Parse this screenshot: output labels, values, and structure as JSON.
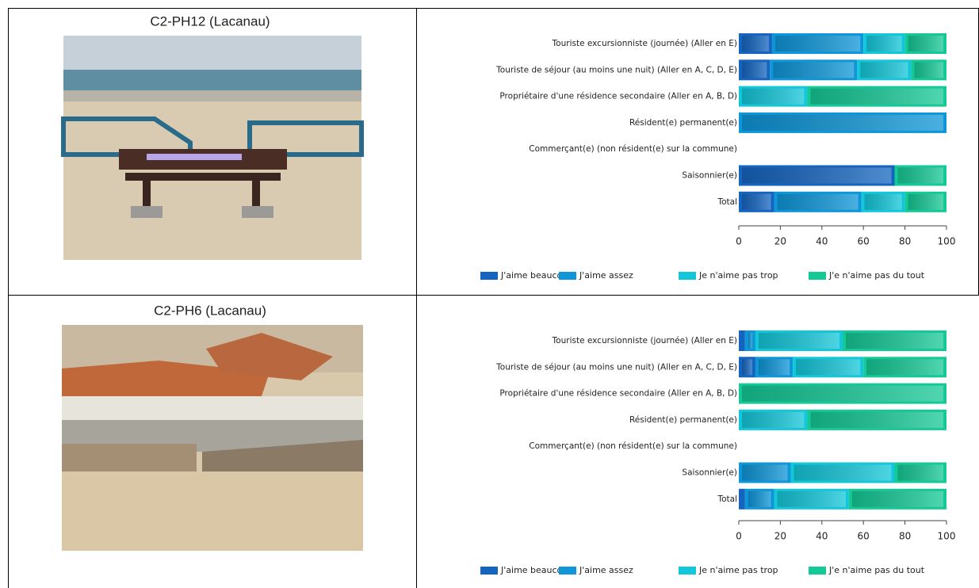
{
  "photos": [
    {
      "caption": "C2-PH12 (Lacanau)"
    },
    {
      "caption": "C2-PH6 (Lacanau)"
    }
  ],
  "chart_data": [
    {
      "type": "bar",
      "orientation": "horizontal",
      "stacked": true,
      "categories": [
        "Touriste excursionniste (journée) (Aller en E)",
        "Touriste de séjour (au moins une nuit) (Aller en A, C, D, E)",
        "Propriétaire d'une résidence secondaire (Aller en A, B, D)",
        "Résident(e) permanent(e)",
        "Commerçant(e) (non résident(e) sur la commune)",
        "Saisonnier(e)",
        "Total"
      ],
      "series": [
        {
          "name": "J'aime beaucoup",
          "color": "#1565c0",
          "values": [
            16,
            15,
            0,
            0,
            0,
            75,
            17
          ]
        },
        {
          "name": "J'aime assez",
          "color": "#0e96d8",
          "values": [
            44,
            42,
            0,
            100,
            0,
            0,
            42
          ]
        },
        {
          "name": "Je n'aime pas trop",
          "color": "#13c7da",
          "values": [
            20,
            26,
            33,
            0,
            0,
            0,
            21
          ]
        },
        {
          "name": "J'e n'aime pas du tout",
          "color": "#15c996",
          "values": [
            20,
            17,
            67,
            0,
            0,
            25,
            20
          ]
        }
      ],
      "xlim": [
        0,
        100
      ],
      "xticks": [
        0,
        20,
        40,
        60,
        80,
        100
      ]
    },
    {
      "type": "bar",
      "orientation": "horizontal",
      "stacked": true,
      "categories": [
        "Touriste excursionniste (journée) (Aller en E)",
        "Touriste de séjour (au moins une nuit) (Aller en A, C, D, E)",
        "Propriétaire d'une résidence secondaire (Aller en A, B, D)",
        "Résident(e) permanent(e)",
        "Commerçant(e) (non résident(e) sur la commune)",
        "Saisonnier(e)",
        "Total"
      ],
      "series": [
        {
          "name": "J'aime beaucoup",
          "color": "#1565c0",
          "values": [
            3,
            8,
            0,
            0,
            0,
            0,
            3
          ]
        },
        {
          "name": "J'aime assez",
          "color": "#0e96d8",
          "values": [
            5,
            18,
            0,
            0,
            0,
            25,
            14
          ]
        },
        {
          "name": "Je n'aime pas trop",
          "color": "#13c7da",
          "values": [
            42,
            34,
            0,
            33,
            0,
            50,
            36
          ]
        },
        {
          "name": "J'e n'aime pas du tout",
          "color": "#15c996",
          "values": [
            50,
            40,
            100,
            67,
            0,
            25,
            47
          ]
        }
      ],
      "xlim": [
        0,
        100
      ],
      "xticks": [
        0,
        20,
        40,
        60,
        80,
        100
      ]
    }
  ]
}
